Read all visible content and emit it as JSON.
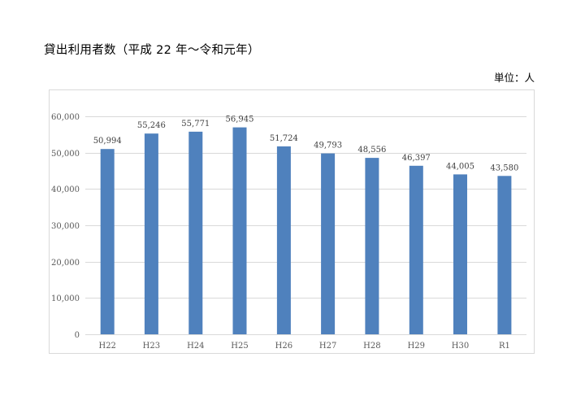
{
  "page": {
    "title": "貸出利用者数（平成 22 年～令和元年）",
    "unit": "単位：人"
  },
  "chart_data": {
    "type": "bar",
    "categories": [
      "H22",
      "H23",
      "H24",
      "H25",
      "H26",
      "H27",
      "H28",
      "H29",
      "H30",
      "R1"
    ],
    "series": [
      {
        "values": [
          50994,
          55246,
          55771,
          56945,
          51724,
          49793,
          48556,
          46397,
          44005,
          43580
        ],
        "color": "#4f81bd"
      }
    ],
    "data_labels": [
      "50,994",
      "55,246",
      "55,771",
      "56,945",
      "51,724",
      "49,793",
      "48,556",
      "46,397",
      "44,005",
      "43,580"
    ],
    "y_ticks": [
      0,
      10000,
      20000,
      30000,
      40000,
      50000,
      60000
    ],
    "y_tick_labels": [
      "0",
      "10,000",
      "20,000",
      "30,000",
      "40,000",
      "50,000",
      "60,000"
    ],
    "ylim": [
      0,
      60000
    ],
    "grid": true,
    "legend": "none",
    "gridline_color": "#d9d9d9"
  }
}
